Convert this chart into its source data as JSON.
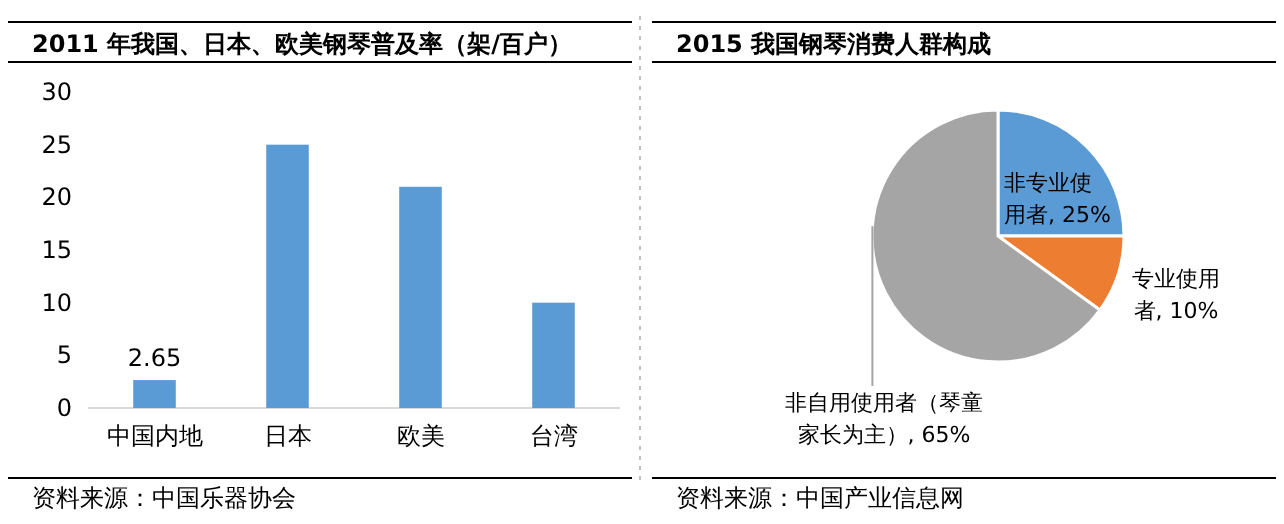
{
  "chart_data": [
    {
      "type": "bar",
      "title": "2011 年我国、日本、欧美钢琴普及率（架/百户）",
      "categories": [
        "中国内地",
        "日本",
        "欧美",
        "台湾"
      ],
      "values": [
        2.65,
        25,
        21,
        10
      ],
      "value_labels": [
        "2.65",
        null,
        null,
        null
      ],
      "color": "#5b9bd5",
      "ylim": [
        0,
        30
      ],
      "yticks": [
        0,
        5,
        10,
        15,
        20,
        25,
        30
      ],
      "grid": false,
      "legend": false,
      "annotations": [
        "资料来源：中国乐器协会"
      ]
    },
    {
      "type": "pie",
      "title": "2015 我国钢琴消费人群构成",
      "categories": [
        "非专业使用者",
        "专业使用者",
        "非自用使用者（琴童家长为主）"
      ],
      "values": [
        25,
        10,
        65
      ],
      "value_labels": [
        ", 25%",
        ", 10%",
        ", 65%"
      ],
      "colors": [
        "#5b9bd5",
        "#ed7d31",
        "#a5a5a5"
      ],
      "legend": false,
      "annotations": [
        "资料来源：中国产业信息网"
      ]
    }
  ]
}
